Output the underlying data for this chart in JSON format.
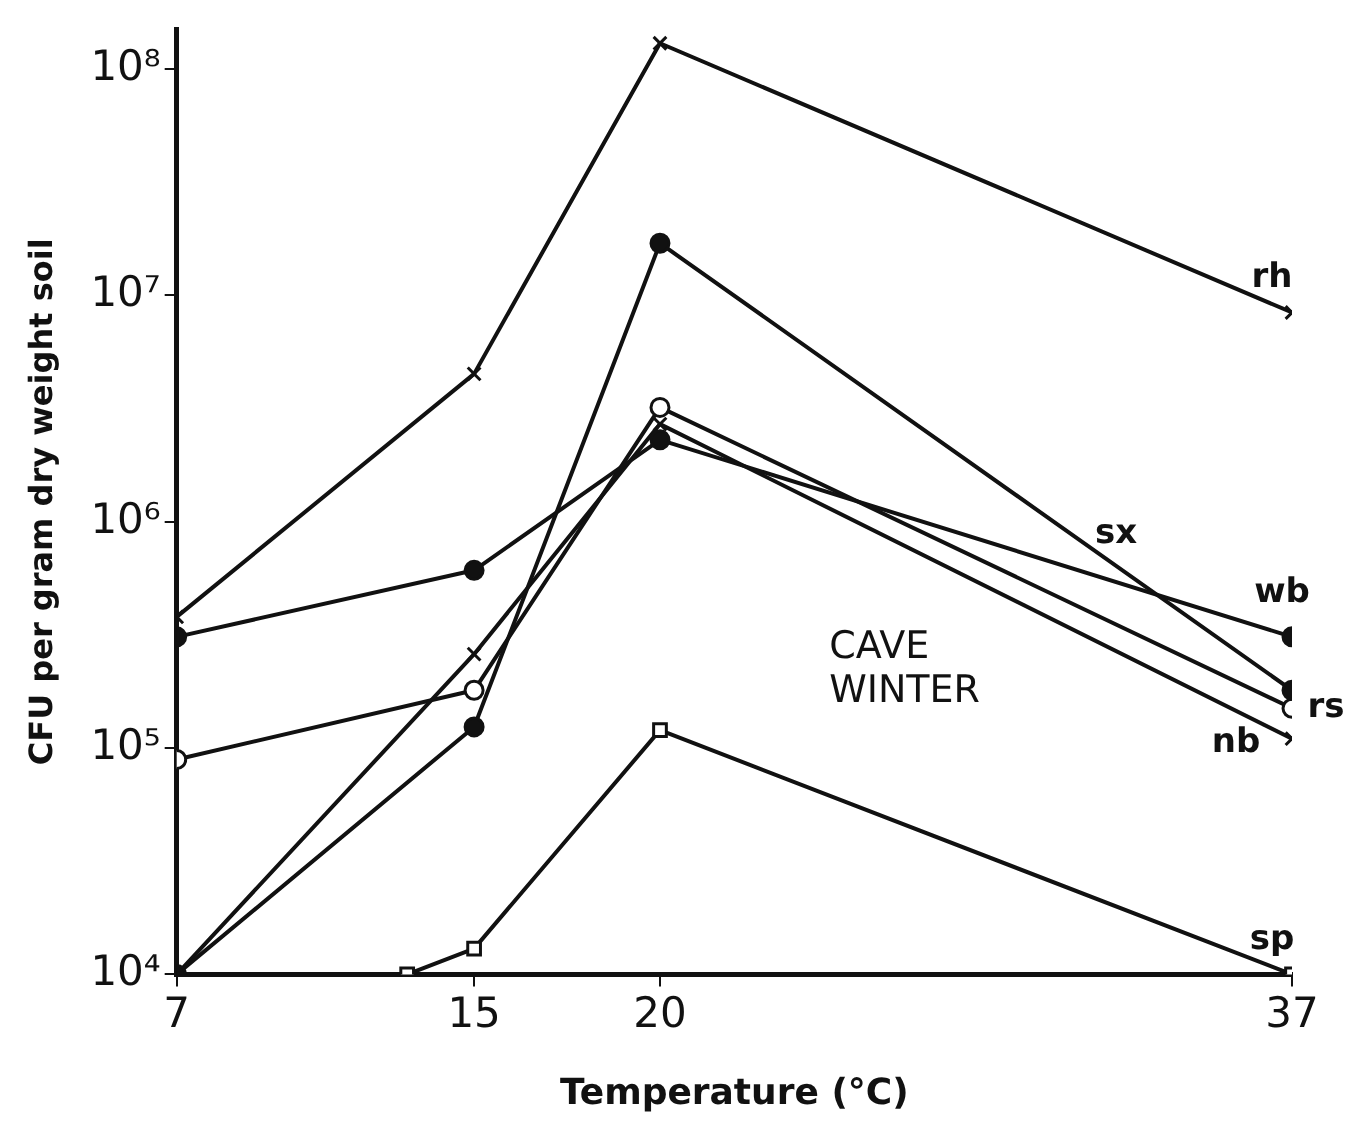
{
  "chart_data": {
    "type": "line",
    "xlabel": "Temperature (°C)",
    "ylabel": "CFU per gram dry weight soil",
    "log": "y",
    "grid": false,
    "legend": false,
    "line_style": "solid",
    "xlim": [
      7,
      37
    ],
    "xticks": [
      7,
      15,
      20,
      37
    ],
    "ylim": [
      10000,
      150000000
    ],
    "yticks": [
      {
        "value": 10000,
        "label": "10⁴"
      },
      {
        "value": 100000,
        "label": "10⁵"
      },
      {
        "value": 1000000,
        "label": "10⁶"
      },
      {
        "value": 10000000,
        "label": "10⁷"
      },
      {
        "value": 100000000,
        "label": "10⁸"
      }
    ],
    "annotations": [
      "CAVE\nWINTER"
    ],
    "series": [
      {
        "name": "rh",
        "color": "#111111",
        "marker": "cross",
        "x": [
          7,
          15,
          20,
          37
        ],
        "values": [
          380000,
          4500000,
          130000000,
          8400000
        ]
      },
      {
        "name": "sx",
        "color": "#111111",
        "marker": "circle",
        "x": [
          7,
          15,
          20,
          37
        ],
        "values": [
          10000,
          124000,
          17000000,
          180000
        ]
      },
      {
        "name": "wb",
        "color": "#111111",
        "marker": "circle",
        "x": [
          7,
          15,
          20,
          37
        ],
        "values": [
          310000,
          610000,
          2300000,
          310000
        ]
      },
      {
        "name": "rs",
        "color": "#111111",
        "marker": "circle",
        "x": [
          7,
          15,
          20,
          37
        ],
        "values": [
          89000,
          180000,
          3200000,
          150000
        ]
      },
      {
        "name": "nb",
        "color": "#111111",
        "marker": "cross",
        "x": [
          7,
          15,
          20,
          37
        ],
        "values": [
          10000,
          260000,
          2700000,
          110000
        ]
      },
      {
        "name": "sp",
        "color": "#111111",
        "marker": "square",
        "x": [
          13.2,
          15,
          20,
          37
        ],
        "values": [
          10000,
          13000,
          120000,
          10000
        ]
      }
    ]
  }
}
